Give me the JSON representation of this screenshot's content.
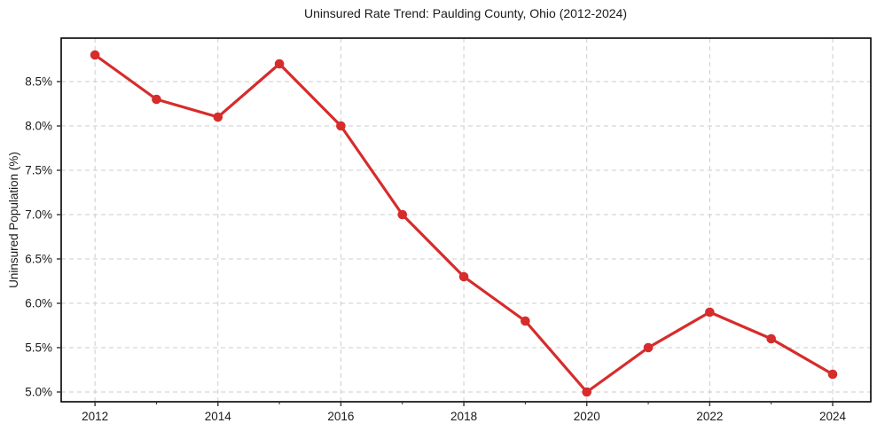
{
  "chart_data": {
    "type": "line",
    "title": "Uninsured Rate Trend: Paulding County, Ohio (2012-2024)",
    "xlabel": "",
    "ylabel": "Uninsured Population (%)",
    "x": [
      2012,
      2013,
      2014,
      2015,
      2016,
      2017,
      2018,
      2019,
      2020,
      2021,
      2022,
      2023,
      2024
    ],
    "values": [
      8.8,
      8.3,
      8.1,
      8.7,
      8.0,
      7.0,
      6.3,
      5.8,
      5.0,
      5.5,
      5.9,
      5.6,
      5.2
    ],
    "x_major_ticks": [
      2012,
      2014,
      2016,
      2018,
      2020,
      2022,
      2024
    ],
    "x_minor_ticks": [
      2013,
      2015,
      2017,
      2019,
      2021,
      2023
    ],
    "y_ticks": [
      5.0,
      5.5,
      6.0,
      6.5,
      7.0,
      7.5,
      8.0,
      8.5
    ],
    "y_tick_suffix": "%",
    "y_tick_decimals": 1,
    "xlim": [
      2011.45,
      2024.62
    ],
    "ylim": [
      4.89,
      8.99
    ],
    "grid": true,
    "grid_style": "dashed",
    "legend": "none",
    "marker": "circle"
  },
  "style": {
    "line_color": "#d62c2c",
    "marker_color": "#d62c2c",
    "grid_color": "#cccccc",
    "spine_color": "#000000",
    "tick_color": "#333333",
    "text_color": "#1a1a1a",
    "background": "#ffffff"
  }
}
